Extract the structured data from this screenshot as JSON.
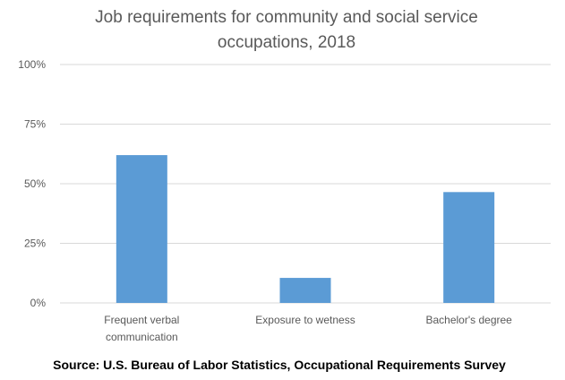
{
  "chart_data": {
    "type": "bar",
    "title": "Job requirements for community and social service occupations, 2018",
    "title_lines": [
      "Job requirements for community and social service",
      "occupations, 2018"
    ],
    "categories": [
      "Frequent verbal communication",
      "Exposure to wetness",
      "Bachelor's degree"
    ],
    "category_lines": [
      [
        "Frequent verbal",
        "communication"
      ],
      [
        "Exposure to wetness"
      ],
      [
        "Bachelor's degree"
      ]
    ],
    "values": [
      62,
      10.5,
      46.5
    ],
    "xlabel": "",
    "ylabel": "",
    "ylim": [
      0,
      100
    ],
    "yticks": [
      0,
      25,
      50,
      75,
      100
    ],
    "ytick_labels": [
      "0%",
      "25%",
      "50%",
      "75%",
      "100%"
    ],
    "grid": true,
    "legend": "none",
    "bar_color": "#5b9bd5",
    "grid_color": "#d9d9d9"
  },
  "source": "Source: U.S. Bureau of Labor Statistics, Occupational Requirements Survey"
}
